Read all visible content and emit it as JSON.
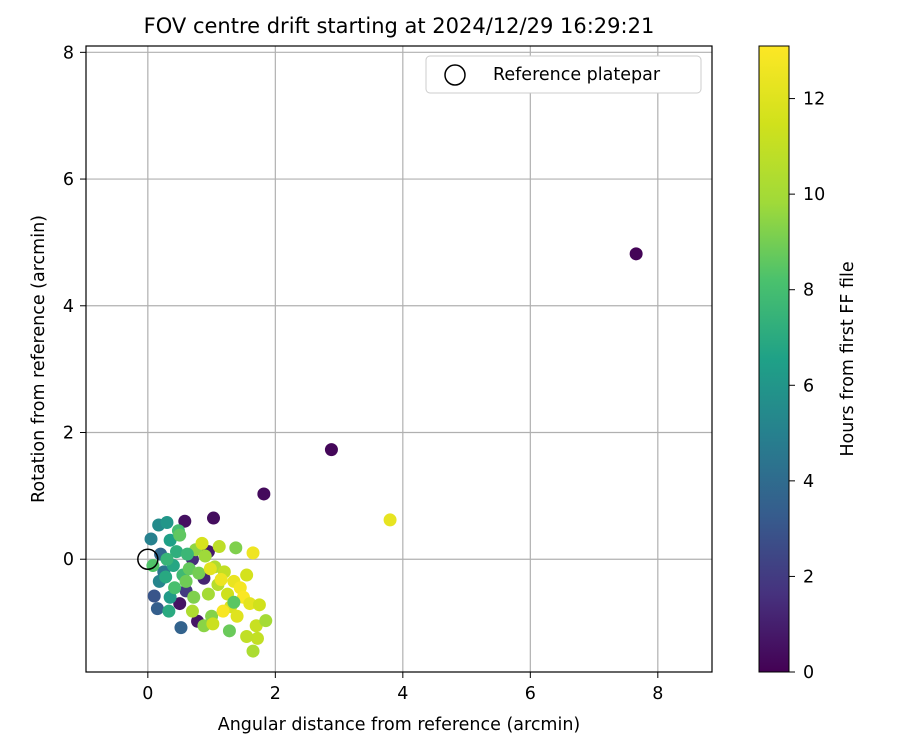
{
  "chart_data": {
    "type": "scatter",
    "title": "FOV centre drift starting at 2024/12/29 16:29:21",
    "xlabel": "Angular distance from reference (arcmin)",
    "ylabel": "Rotation from reference (arcmin)",
    "xlim": [
      -0.97,
      8.85
    ],
    "ylim": [
      -1.78,
      8.1
    ],
    "xticks": [
      0,
      2,
      4,
      6,
      8
    ],
    "xtick_labels": [
      "0",
      "2",
      "4",
      "6",
      "8"
    ],
    "yticks": [
      0,
      2,
      4,
      6,
      8
    ],
    "ytick_labels": [
      "0",
      "2",
      "4",
      "6",
      "8"
    ],
    "grid": true,
    "legend": {
      "position": "top-right",
      "entries": [
        "Reference platepar"
      ]
    },
    "reference_point": {
      "name": "Reference platepar",
      "x": 0,
      "y": 0
    },
    "colorbar": {
      "label": "Hours from first FF file",
      "colormap": "viridis",
      "range": [
        0,
        13.1
      ],
      "ticks": [
        0,
        2,
        4,
        6,
        8,
        10,
        12
      ],
      "tick_labels": [
        "0",
        "2",
        "4",
        "6",
        "8",
        "10",
        "12"
      ]
    },
    "points": [
      {
        "x": 7.66,
        "y": 4.82,
        "c": 0.1
      },
      {
        "x": 2.88,
        "y": 1.73,
        "c": 0.2
      },
      {
        "x": 1.82,
        "y": 1.03,
        "c": 0.3
      },
      {
        "x": 3.8,
        "y": 0.62,
        "c": 12.3
      },
      {
        "x": 1.03,
        "y": 0.65,
        "c": 0.4
      },
      {
        "x": 0.58,
        "y": 0.6,
        "c": 0.5
      },
      {
        "x": 0.5,
        "y": -0.7,
        "c": 0.6
      },
      {
        "x": 0.95,
        "y": 0.12,
        "c": 0.8
      },
      {
        "x": 0.78,
        "y": -0.98,
        "c": 0.7
      },
      {
        "x": 0.88,
        "y": -0.3,
        "c": 1.2
      },
      {
        "x": 0.7,
        "y": 0.0,
        "c": 1.5
      },
      {
        "x": 0.6,
        "y": -0.5,
        "c": 2.0
      },
      {
        "x": 0.1,
        "y": -0.58,
        "c": 3.0
      },
      {
        "x": 0.15,
        "y": -0.78,
        "c": 3.4
      },
      {
        "x": 0.52,
        "y": -1.08,
        "c": 3.6
      },
      {
        "x": 0.2,
        "y": 0.08,
        "c": 3.8
      },
      {
        "x": 0.05,
        "y": 0.32,
        "c": 5.0
      },
      {
        "x": 0.17,
        "y": 0.54,
        "c": 5.5
      },
      {
        "x": 0.3,
        "y": 0.58,
        "c": 6.0
      },
      {
        "x": 0.35,
        "y": 0.3,
        "c": 6.5
      },
      {
        "x": 0.25,
        "y": -0.2,
        "c": 4.5
      },
      {
        "x": 0.18,
        "y": -0.35,
        "c": 5.2
      },
      {
        "x": 0.4,
        "y": -0.1,
        "c": 6.8
      },
      {
        "x": 0.45,
        "y": 0.12,
        "c": 7.2
      },
      {
        "x": 0.3,
        "y": 0.0,
        "c": 7.5
      },
      {
        "x": 0.55,
        "y": -0.25,
        "c": 7.8
      },
      {
        "x": 0.35,
        "y": -0.6,
        "c": 6.2
      },
      {
        "x": 0.33,
        "y": -0.82,
        "c": 7.0
      },
      {
        "x": 0.48,
        "y": 0.45,
        "c": 8.0
      },
      {
        "x": 0.5,
        "y": 0.38,
        "c": 8.6
      },
      {
        "x": 0.08,
        "y": -0.1,
        "c": 8.3
      },
      {
        "x": 0.6,
        "y": -0.35,
        "c": 8.9
      },
      {
        "x": 0.65,
        "y": -0.15,
        "c": 8.7
      },
      {
        "x": 0.72,
        "y": -0.6,
        "c": 9.2
      },
      {
        "x": 0.75,
        "y": 0.15,
        "c": 9.5
      },
      {
        "x": 0.8,
        "y": -0.22,
        "c": 9.0
      },
      {
        "x": 0.9,
        "y": 0.05,
        "c": 9.8
      },
      {
        "x": 0.95,
        "y": -0.55,
        "c": 10.0
      },
      {
        "x": 1.0,
        "y": -0.9,
        "c": 9.3
      },
      {
        "x": 1.05,
        "y": -0.12,
        "c": 10.4
      },
      {
        "x": 1.1,
        "y": -0.4,
        "c": 10.6
      },
      {
        "x": 1.12,
        "y": 0.2,
        "c": 10.8
      },
      {
        "x": 1.2,
        "y": -0.2,
        "c": 11.0
      },
      {
        "x": 1.25,
        "y": -0.55,
        "c": 11.4
      },
      {
        "x": 1.3,
        "y": -0.75,
        "c": 11.8
      },
      {
        "x": 1.35,
        "y": -0.35,
        "c": 12.4
      },
      {
        "x": 1.4,
        "y": -0.9,
        "c": 12.0
      },
      {
        "x": 1.45,
        "y": -0.45,
        "c": 12.8
      },
      {
        "x": 1.5,
        "y": -0.6,
        "c": 13.0
      },
      {
        "x": 1.55,
        "y": -0.25,
        "c": 11.6
      },
      {
        "x": 1.6,
        "y": -0.7,
        "c": 12.2
      },
      {
        "x": 1.65,
        "y": 0.1,
        "c": 12.6
      },
      {
        "x": 1.7,
        "y": -1.05,
        "c": 11.2
      },
      {
        "x": 1.72,
        "y": -1.25,
        "c": 11.0
      },
      {
        "x": 1.55,
        "y": -1.22,
        "c": 10.9
      },
      {
        "x": 1.65,
        "y": -1.45,
        "c": 10.2
      },
      {
        "x": 1.85,
        "y": -0.97,
        "c": 10.0
      },
      {
        "x": 1.75,
        "y": -0.72,
        "c": 11.5
      },
      {
        "x": 1.38,
        "y": 0.18,
        "c": 9.2
      },
      {
        "x": 1.35,
        "y": -0.68,
        "c": 8.5
      },
      {
        "x": 1.28,
        "y": -1.13,
        "c": 8.8
      },
      {
        "x": 0.88,
        "y": -1.05,
        "c": 9.4
      },
      {
        "x": 1.02,
        "y": -1.02,
        "c": 11.3
      },
      {
        "x": 0.85,
        "y": 0.25,
        "c": 11.7
      },
      {
        "x": 0.7,
        "y": -0.82,
        "c": 10.3
      },
      {
        "x": 0.62,
        "y": 0.08,
        "c": 7.6
      },
      {
        "x": 0.42,
        "y": -0.45,
        "c": 8.1
      },
      {
        "x": 0.28,
        "y": -0.28,
        "c": 6.9
      },
      {
        "x": 1.18,
        "y": -0.82,
        "c": 12.9
      },
      {
        "x": 0.98,
        "y": -0.15,
        "c": 12.1
      },
      {
        "x": 1.15,
        "y": -0.32,
        "c": 12.5
      }
    ]
  }
}
